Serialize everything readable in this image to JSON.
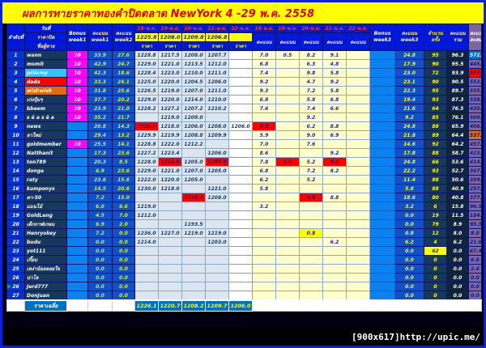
{
  "title": "ผลการทายราคาทองคำปิดตลาด NewYork 4 -29 พ.ค. 2558",
  "watermark": "[900x617]http://upic.me/",
  "colors": {
    "accent_red": "#ff0000",
    "accent_yellow": "#ffff00",
    "accent_orange": "#e26b0a",
    "accent_blue": "#0070c0",
    "accent_cyan": "#2fc3f7",
    "accent_magenta": "#ff00ff",
    "header_blue": "#0018d8",
    "cumulative_purple": "#8064a2",
    "title_red": "#e00000"
  },
  "header": {
    "no_label": "ลำดับที่",
    "date_label": "วันที่",
    "close_label": "ราคาปิด",
    "name_label": "ชื่อผู้ทาย",
    "bonus_label": "Bonus",
    "score_label": "คะแนน",
    "week1": "week1",
    "week2": "week2",
    "week3": "week3",
    "price_label": "ราคา",
    "count_top": "จำนวน",
    "count_bottom": "ครั้ง",
    "total_top": "คะแนน",
    "total_bottom": "รวม",
    "cum_top": "คะแนน",
    "cum_bottom": "สะสมฯ",
    "dates": [
      "18-พ.ค.",
      "19-พ.ค.",
      "20-พ.ค.",
      "21-พ.ค.",
      "22-พ.ค."
    ],
    "close_prices": [
      "1225.8",
      "1208.0",
      "1209.8",
      "1206.8",
      ""
    ]
  },
  "footer": {
    "label": "ราคาเฉลี่ย",
    "averages": [
      "1226.1",
      "1220.7",
      "1208.2",
      "1209.7",
      "1206.0"
    ]
  },
  "rows": [
    {
      "no": "1",
      "name": "wann",
      "bonus1": "10",
      "w1": "33.9",
      "w2": "27.6",
      "prices": [
        "1228.8",
        "1217.5",
        "1208.0",
        "1207.7",
        ""
      ],
      "scores": [
        "7.0",
        "0.5",
        "8.2",
        "9.1",
        ""
      ],
      "bonus3": "",
      "w3": "24.8",
      "count": "95",
      "total": "96.3",
      "cum": "572.2",
      "cum_hl": "blue"
    },
    {
      "no": "2",
      "name": "msmit",
      "bonus1": "10",
      "w1": "42.9",
      "w2": "24.7",
      "prices": [
        "1229.0",
        "1221.0",
        "1213.5",
        "1212.0",
        ""
      ],
      "scores": [
        "6.8",
        "",
        "6.3",
        "4.8",
        ""
      ],
      "bonus3": "",
      "w3": "17.9",
      "count": "90",
      "total": "95.5",
      "cum": "445.6"
    },
    {
      "no": "3",
      "name": "primmy",
      "name_hl": "cyan",
      "bonus1": "10",
      "w1": "42.3",
      "w2": "18.6",
      "prices": [
        "1228.4",
        "1223.0",
        "1210.0",
        "1211.0",
        ""
      ],
      "scores": [
        "7.4",
        "",
        "9.8",
        "5.8",
        ""
      ],
      "bonus3": "",
      "w3": "23.0",
      "count": "72",
      "total": "93.9",
      "cum": "577.4",
      "cum_hl": "red"
    },
    {
      "no": "4",
      "name": "dada",
      "name_hl": "red",
      "bonus1": "10",
      "w1": "33.3",
      "w2": "24.1",
      "prices": [
        "1225.0",
        "1220.0",
        "1204.5",
        "1206.0",
        ""
      ],
      "scores": [
        "9.2",
        "",
        "4.7",
        "9.2",
        ""
      ],
      "bonus3": "",
      "w3": "23.1",
      "count": "90",
      "total": "90.5",
      "cum": "552.5"
    },
    {
      "no": "5",
      "name": "wishwish",
      "name_hl": "orange",
      "bonus1": "10",
      "w1": "31.8",
      "w2": "25.6",
      "prices": [
        "1226.5",
        "1219.0",
        "1207.0",
        "1211.0",
        ""
      ],
      "scores": [
        "9.3",
        "",
        "7.2",
        "5.8",
        ""
      ],
      "bonus3": "",
      "w3": "22.3",
      "count": "95",
      "total": "89.7",
      "cum": "555.1"
    },
    {
      "no": "6",
      "name": "เก่งปุ้มๆ",
      "bonus1": "10",
      "w1": "37.7",
      "w2": "20.2",
      "prices": [
        "1229.0",
        "1220.0",
        "1214.0",
        "1210.0",
        ""
      ],
      "scores": [
        "6.8",
        "",
        "5.8",
        "6.8",
        ""
      ],
      "bonus3": "",
      "w3": "19.4",
      "count": "93",
      "total": "87.3",
      "cum": "538.9"
    },
    {
      "no": "7",
      "name": "bbeem",
      "bonus1": "10",
      "w1": "23.9",
      "w2": "21.0",
      "prices": [
        "1228.2",
        "1227.2",
        "1207.2",
        "1210.2",
        ""
      ],
      "scores": [
        "7.6",
        "",
        "7.4",
        "6.6",
        ""
      ],
      "bonus3": "",
      "w3": "21.6",
      "count": "64",
      "total": "76.5",
      "cum": "435.1"
    },
    {
      "no": "8",
      "name": "s ě a s ě a",
      "bonus1": "10",
      "w1": "35.2",
      "w2": "21.7",
      "prices": [
        "",
        "1219.0",
        "1209.0",
        "",
        ""
      ],
      "scores": [
        "",
        "",
        "9.2",
        "",
        ""
      ],
      "bonus3": "",
      "w3": "9.2",
      "count": "85",
      "total": "76.1",
      "cum": "509.1"
    },
    {
      "no": "9",
      "name": "news",
      "bonus1": "",
      "w1": "26.8",
      "w2": "14.3",
      "prices": [
        "1226.0",
        "1218.0",
        "1206.0",
        "1208.0",
        "1206.0"
      ],
      "price_hl": [
        "red",
        "",
        "",
        "",
        ""
      ],
      "scores": [
        "9.8",
        "",
        "6.2",
        "8.8",
        ""
      ],
      "score_hl": [
        "red",
        "",
        "",
        "",
        ""
      ],
      "bonus3": "",
      "w3": "24.8",
      "count": "88",
      "total": "65.9",
      "cum": "406.6"
    },
    {
      "no": "10",
      "name": "ยาใหม่",
      "bonus1": "",
      "w1": "29.4",
      "w2": "13.2",
      "prices": [
        "1229.9",
        "1219.9",
        "1208.8",
        "1209.9",
        ""
      ],
      "scores": [
        "5.9",
        "",
        "9.0",
        "6.9",
        ""
      ],
      "bonus3": "",
      "w3": "21.8",
      "count": "89",
      "total": "64.4",
      "cum": "537.2",
      "cum_hl": "orange"
    },
    {
      "no": "11",
      "name": "goldmember",
      "bonus1": "10",
      "w1": "25.5",
      "w2": "14.1",
      "prices": [
        "1228.8",
        "1222.0",
        "1212.2",
        "",
        ""
      ],
      "scores": [
        "7.0",
        "",
        "7.6",
        "",
        ""
      ],
      "bonus3": "",
      "w3": "14.6",
      "count": "92",
      "total": "64.2",
      "cum": "457.0"
    },
    {
      "no": "12",
      "name": "Natthanit",
      "bonus1": "",
      "w1": "17.3",
      "w2": "23.6",
      "prices": [
        "1227.2",
        "1223.4",
        "",
        "1206.0",
        ""
      ],
      "scores": [
        "8.6",
        "",
        "",
        "9.2",
        ""
      ],
      "bonus3": "",
      "w3": "17.8",
      "count": "88",
      "total": "58.7",
      "cum": "423.8"
    },
    {
      "no": "13",
      "name": "ton789",
      "bonus1": "",
      "w1": "20.3",
      "w2": "8.5",
      "prices": [
        "1228.0",
        "1216.0",
        "1205.0",
        "1207.0",
        ""
      ],
      "price_hl": [
        "",
        "red",
        "",
        "red",
        ""
      ],
      "scores": [
        "7.8",
        "2.0",
        "5.2",
        "9.8",
        ""
      ],
      "score_hl": [
        "",
        "red",
        "",
        "red",
        ""
      ],
      "bonus3": "",
      "w3": "24.8",
      "count": "66",
      "total": "53.6",
      "cum": "414.9"
    },
    {
      "no": "14",
      "name": "donga",
      "bonus1": "",
      "w1": "6.9",
      "w2": "23.6",
      "prices": [
        "1229.0",
        "1221.0",
        "1207.0",
        "1205.0",
        ""
      ],
      "scores": [
        "6.8",
        "",
        "7.2",
        "8.2",
        ""
      ],
      "bonus3": "",
      "w3": "22.2",
      "count": "93",
      "total": "52.7",
      "cum": "367.1"
    },
    {
      "no": "15",
      "name": "raty",
      "bonus1": "",
      "w1": "23.6",
      "w2": "15.6",
      "prices": [
        "1222.0",
        "1220.0",
        "1205.0",
        "",
        ""
      ],
      "scores": [
        "6.2",
        "",
        "5.2",
        "",
        ""
      ],
      "bonus3": "",
      "w3": "11.4",
      "count": "88",
      "total": "50.6",
      "cum": "359.3"
    },
    {
      "no": "16",
      "name": "kumponys",
      "bonus1": "",
      "w1": "14.5",
      "w2": "20.6",
      "prices": [
        "1230.0",
        "1218.0",
        "",
        "1221.0",
        ""
      ],
      "scores": [
        "5.8",
        "",
        "",
        "",
        ""
      ],
      "bonus3": "",
      "w3": "5.8",
      "count": "88",
      "total": "40.9",
      "cum": "257.5"
    },
    {
      "no": "17",
      "name": "ตา-50",
      "bonus1": "",
      "w1": "7.2",
      "w2": "15.0",
      "prices": [
        "",
        "",
        "1210.0",
        "1208.0",
        ""
      ],
      "price_hl": [
        "",
        "",
        "red",
        "",
        ""
      ],
      "scores": [
        "",
        "",
        "9.8",
        "8.8",
        ""
      ],
      "score_hl": [
        "",
        "",
        "red",
        "",
        ""
      ],
      "bonus3": "",
      "w3": "18.6",
      "count": "80",
      "total": "40.8",
      "cum": "377.4"
    },
    {
      "no": "18",
      "name": "แมนโม้",
      "bonus1": "",
      "w1": "6.0",
      "w2": "6.6",
      "prices": [
        "1219.0",
        "",
        "",
        "",
        ""
      ],
      "scores": [
        "3.2",
        "",
        "",
        "",
        ""
      ],
      "bonus3": "",
      "w3": "3.2",
      "count": "6",
      "total": "15.8",
      "cum": "96.5"
    },
    {
      "no": "19",
      "name": "GoldLeng",
      "bonus1": "",
      "w1": "4.5",
      "w2": "7.0",
      "prices": [
        "1212.0",
        "",
        "",
        "",
        ""
      ],
      "scores": [
        "",
        "",
        "",
        "",
        ""
      ],
      "bonus3": "",
      "w3": "0.0",
      "count": "19",
      "total": "11.5",
      "cum": "184.9"
    },
    {
      "no": "20",
      "name": "เด็กกาฬเกษม",
      "bonus1": "",
      "w1": "6.9",
      "w2": "2.0",
      "prices": [
        "",
        "",
        "1193.5",
        "",
        ""
      ],
      "scores": [
        "",
        "",
        "",
        "",
        ""
      ],
      "bonus3": "",
      "w3": "0.0",
      "count": "79",
      "total": "8.9",
      "cum": "95.5"
    },
    {
      "no": "21",
      "name": "Henryokey",
      "bonus1": "",
      "w1": "7.2",
      "w2": "0.0",
      "prices": [
        "1236.0",
        "1227.0",
        "1219.0",
        "1219.0",
        ""
      ],
      "scores": [
        "",
        "",
        "0.8",
        "",
        ""
      ],
      "score_hl": [
        "",
        "",
        "yellow",
        "",
        ""
      ],
      "bonus3": "",
      "w3": "0.8",
      "count": "12",
      "total": "8.0",
      "cum": "8.0"
    },
    {
      "no": "22",
      "name": "budu",
      "bonus1": "",
      "w1": "0.0",
      "w2": "0.0",
      "prices": [
        "1214.0",
        "",
        "",
        "1203.0",
        ""
      ],
      "scores": [
        "",
        "",
        "",
        "6.2",
        ""
      ],
      "bonus3": "",
      "w3": "6.2",
      "count": "4",
      "total": "6.2",
      "cum": "21.6"
    },
    {
      "no": "23",
      "name": "yot111",
      "bonus1": "",
      "w1": "0.0",
      "w2": "0.0",
      "prices": [
        "",
        "",
        "",
        "",
        ""
      ],
      "scores": [
        "",
        "",
        "",
        "",
        ""
      ],
      "bonus3": "",
      "w3": "0.0",
      "count": "62",
      "count_hl": "yellow",
      "total": "0.0",
      "cum": "67.4"
    },
    {
      "no": "24",
      "name": "เกี๊ยบ",
      "bonus1": "",
      "w1": "0.0",
      "w2": "0.0",
      "prices": [
        "",
        "",
        "",
        "",
        ""
      ],
      "scores": [
        "",
        "",
        "",
        "",
        ""
      ],
      "bonus3": "",
      "w3": "0.0",
      "count": "0",
      "total": "0.0",
      "cum": "6.6"
    },
    {
      "no": "25",
      "name": "เหง่าน้อยลอยใจ",
      "bonus1": "",
      "w1": "0.0",
      "w2": "0.0",
      "prices": [
        "",
        "",
        "",
        "",
        ""
      ],
      "scores": [
        "",
        "",
        "",
        "",
        ""
      ],
      "bonus3": "",
      "w3": "0.0",
      "count": "0",
      "total": "0.0",
      "cum": "2.4"
    },
    {
      "no": "26",
      "name": "น่าโล",
      "bonus1": "",
      "w1": "0.0",
      "w2": "0.0",
      "prices": [
        "",
        "",
        "",
        "",
        ""
      ],
      "scores": [
        "",
        "",
        "",
        "",
        ""
      ],
      "bonus3": "",
      "w3": "0.0",
      "count": "0",
      "total": "0.0",
      "cum": "0.0"
    },
    {
      "no": "26",
      "name": "Jerd777",
      "marker": true,
      "bonus1": "",
      "w1": "0.0",
      "w2": "0.0",
      "prices": [
        "",
        "",
        "",
        "",
        ""
      ],
      "scores": [
        "",
        "",
        "",
        "",
        ""
      ],
      "bonus3": "",
      "w3": "0.0",
      "count": "0",
      "total": "0.0",
      "cum": "0.0"
    },
    {
      "no": "27",
      "name": "DonJuan",
      "bonus1": "",
      "w1": "0.0",
      "w2": "0.0",
      "prices": [
        "",
        "",
        "",
        "",
        ""
      ],
      "scores": [
        "",
        "",
        "",
        "",
        ""
      ],
      "bonus3": "",
      "w3": "0.0",
      "count": "0",
      "total": "0.0",
      "cum": "0.0"
    }
  ]
}
